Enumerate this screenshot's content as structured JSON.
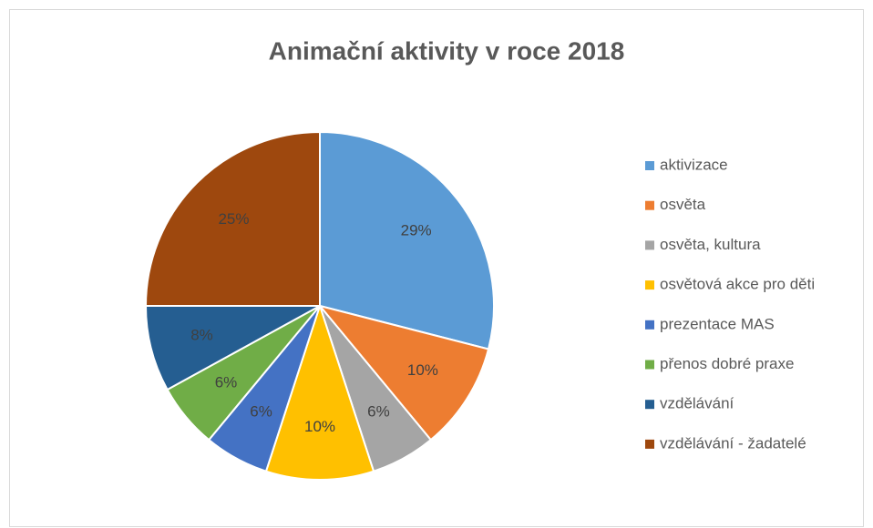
{
  "chart_data": {
    "type": "pie",
    "title": "Animační aktivity v roce 2018",
    "categories": [
      "aktivizace",
      "osvěta",
      "osvěta, kultura",
      "osvětová akce pro děti",
      "prezentace MAS",
      "přenos dobré praxe",
      "vzdělávání",
      "vzdělávání - žadatelé"
    ],
    "values": [
      29,
      10,
      6,
      10,
      6,
      6,
      8,
      25
    ],
    "value_labels": [
      "29%",
      "10%",
      "6%",
      "10%",
      "6%",
      "6%",
      "8%",
      "25%"
    ],
    "colors": [
      "#5b9bd5",
      "#ed7d31",
      "#a5a5a5",
      "#ffc000",
      "#4472c4",
      "#70ad47",
      "#255e91",
      "#9e480e"
    ],
    "legend": "right"
  }
}
